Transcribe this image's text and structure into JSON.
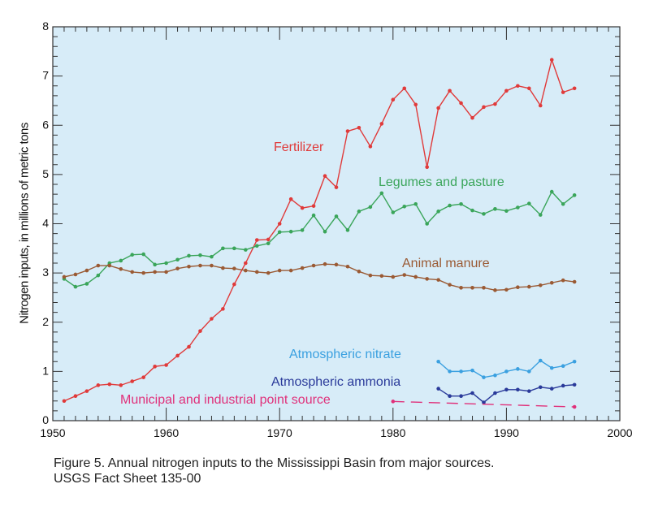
{
  "chart_data": {
    "type": "line",
    "ylabel": "Nitrogen inputs, in millions of metric tons",
    "xlim": [
      1950,
      2000
    ],
    "ylim": [
      0,
      8
    ],
    "x_ticks": [
      "1950",
      "1960",
      "1970",
      "1980",
      "1990",
      "2000"
    ],
    "y_ticks": [
      "0",
      "1",
      "2",
      "3",
      "4",
      "5",
      "6",
      "7",
      "8"
    ],
    "grid": false,
    "background": "#d7ecf8",
    "series": [
      {
        "name": "Fertilizer",
        "color": "#e03a3a",
        "x": [
          1951,
          1952,
          1953,
          1954,
          1955,
          1956,
          1957,
          1958,
          1959,
          1960,
          1961,
          1962,
          1963,
          1964,
          1965,
          1966,
          1967,
          1968,
          1969,
          1970,
          1971,
          1972,
          1973,
          1974,
          1975,
          1976,
          1977,
          1978,
          1979,
          1980,
          1981,
          1982,
          1983,
          1984,
          1985,
          1986,
          1987,
          1988,
          1989,
          1990,
          1991,
          1992,
          1993,
          1994,
          1995,
          1996
        ],
        "y": [
          0.4,
          0.5,
          0.6,
          0.72,
          0.74,
          0.72,
          0.8,
          0.88,
          1.1,
          1.13,
          1.32,
          1.5,
          1.82,
          2.07,
          2.27,
          2.77,
          3.2,
          3.67,
          3.68,
          4.0,
          4.5,
          4.32,
          4.36,
          4.97,
          4.74,
          5.88,
          5.95,
          5.57,
          6.03,
          6.52,
          6.75,
          6.42,
          5.15,
          6.35,
          6.7,
          6.45,
          6.15,
          6.37,
          6.43,
          6.7,
          6.8,
          6.75,
          6.4,
          7.33,
          6.67,
          6.75
        ]
      },
      {
        "name": "Legumes and pasture",
        "color": "#3aa55a",
        "x": [
          1951,
          1952,
          1953,
          1954,
          1955,
          1956,
          1957,
          1958,
          1959,
          1960,
          1961,
          1962,
          1963,
          1964,
          1965,
          1966,
          1967,
          1968,
          1969,
          1970,
          1971,
          1972,
          1973,
          1974,
          1975,
          1976,
          1977,
          1978,
          1979,
          1980,
          1981,
          1982,
          1983,
          1984,
          1985,
          1986,
          1987,
          1988,
          1989,
          1990,
          1991,
          1992,
          1993,
          1994,
          1995,
          1996
        ],
        "y": [
          2.88,
          2.72,
          2.78,
          2.95,
          3.2,
          3.25,
          3.37,
          3.38,
          3.17,
          3.2,
          3.27,
          3.35,
          3.36,
          3.33,
          3.5,
          3.5,
          3.47,
          3.55,
          3.6,
          3.83,
          3.84,
          3.87,
          4.17,
          3.84,
          4.15,
          3.87,
          4.25,
          4.34,
          4.62,
          4.23,
          4.35,
          4.4,
          4.0,
          4.25,
          4.37,
          4.4,
          4.27,
          4.2,
          4.3,
          4.26,
          4.33,
          4.41,
          4.18,
          4.65,
          4.4,
          4.58
        ]
      },
      {
        "name": "Animal manure",
        "color": "#9a5a34",
        "x": [
          1951,
          1952,
          1953,
          1954,
          1955,
          1956,
          1957,
          1958,
          1959,
          1960,
          1961,
          1962,
          1963,
          1964,
          1965,
          1966,
          1967,
          1968,
          1969,
          1970,
          1971,
          1972,
          1973,
          1974,
          1975,
          1976,
          1977,
          1978,
          1979,
          1980,
          1981,
          1982,
          1983,
          1984,
          1985,
          1986,
          1987,
          1988,
          1989,
          1990,
          1991,
          1992,
          1993,
          1994,
          1995,
          1996
        ],
        "y": [
          2.92,
          2.97,
          3.05,
          3.15,
          3.15,
          3.08,
          3.02,
          3.0,
          3.02,
          3.02,
          3.09,
          3.13,
          3.15,
          3.15,
          3.1,
          3.09,
          3.05,
          3.02,
          3.0,
          3.05,
          3.05,
          3.1,
          3.15,
          3.18,
          3.17,
          3.13,
          3.03,
          2.95,
          2.94,
          2.92,
          2.96,
          2.92,
          2.88,
          2.86,
          2.76,
          2.7,
          2.7,
          2.7,
          2.65,
          2.66,
          2.71,
          2.72,
          2.75,
          2.8,
          2.85,
          2.82
        ]
      },
      {
        "name": "Atmospheric nitrate",
        "color": "#3aa0e0",
        "x": [
          1984,
          1985,
          1986,
          1987,
          1988,
          1989,
          1990,
          1991,
          1992,
          1993,
          1994,
          1995,
          1996
        ],
        "y": [
          1.2,
          1.0,
          1.0,
          1.02,
          0.88,
          0.92,
          1.0,
          1.05,
          1.0,
          1.22,
          1.07,
          1.11,
          1.2
        ]
      },
      {
        "name": "Atmospheric ammonia",
        "color": "#2a3a9a",
        "x": [
          1984,
          1985,
          1986,
          1987,
          1988,
          1989,
          1990,
          1991,
          1992,
          1993,
          1994,
          1995,
          1996
        ],
        "y": [
          0.65,
          0.5,
          0.5,
          0.56,
          0.37,
          0.56,
          0.63,
          0.63,
          0.6,
          0.68,
          0.65,
          0.71,
          0.73
        ]
      },
      {
        "name": "Municipal and industrial point source",
        "color": "#e0307a",
        "dashed": true,
        "x": [
          1980,
          1996
        ],
        "y": [
          0.39,
          0.28
        ]
      }
    ]
  },
  "caption": {
    "line1": "Figure 5. Annual nitrogen inputs to the Mississippi Basin from major sources.",
    "line2": "USGS Fact Sheet 135-00"
  }
}
